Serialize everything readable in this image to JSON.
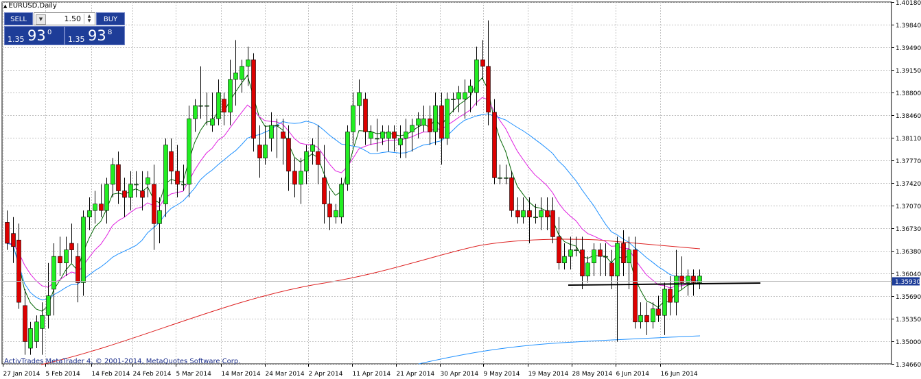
{
  "window": {
    "title": "EURUSD,Daily"
  },
  "trade_panel": {
    "sell_label": "SELL",
    "buy_label": "BUY",
    "lot_value": "1.50",
    "sell_price": {
      "prefix": "1.35",
      "big": "93",
      "sup": "0"
    },
    "buy_price": {
      "prefix": "1.35",
      "big": "93",
      "sup": "8"
    }
  },
  "copyright": "ActivTrades MetaTrader 4, © 2001-2014, MetaQuotes Software Corp.",
  "colors": {
    "bull": "#22ee22",
    "bear": "#dd0000",
    "grid": "#c0c0c0",
    "current_price_bg": "#1e3d98"
  },
  "chart_data": {
    "type": "candlestick",
    "symbol": "EURUSD",
    "timeframe": "Daily",
    "ylim": [
      1.3466,
      1.4018
    ],
    "y_ticks": [
      "1.40180",
      "1.39840",
      "1.39490",
      "1.39150",
      "1.38800",
      "1.38460",
      "1.38110",
      "1.37770",
      "1.37420",
      "1.37070",
      "1.36730",
      "1.36380",
      "1.36040",
      "1.35690",
      "1.35350",
      "1.35000",
      "1.34660"
    ],
    "x_ticks": [
      "27 Jan 2014",
      "5 Feb 2014",
      "14 Feb 2014",
      "24 Feb 2014",
      "5 Mar 2014",
      "14 Mar 2014",
      "24 Mar 2014",
      "2 Apr 2014",
      "11 Apr 2014",
      "21 Apr 2014",
      "30 Apr 2014",
      "9 May 2014",
      "19 May 2014",
      "28 May 2014",
      "6 Jun 2014",
      "16 Jun 2014"
    ],
    "current_price": "1.35930",
    "grid": true,
    "ohlc": [
      [
        1.3682,
        1.37,
        1.364,
        1.365
      ],
      [
        1.3665,
        1.369,
        1.362,
        1.3645
      ],
      [
        1.3655,
        1.368,
        1.355,
        1.356
      ],
      [
        1.3555,
        1.358,
        1.348,
        1.35
      ],
      [
        1.349,
        1.353,
        1.348,
        1.352
      ],
      [
        1.35,
        1.354,
        1.349,
        1.353
      ],
      [
        1.352,
        1.356,
        1.348,
        1.354
      ],
      [
        1.354,
        1.362,
        1.352,
        1.357
      ],
      [
        1.358,
        1.365,
        1.354,
        1.363
      ],
      [
        1.363,
        1.366,
        1.36,
        1.362
      ],
      [
        1.362,
        1.366,
        1.36,
        1.364
      ],
      [
        1.365,
        1.368,
        1.362,
        1.364
      ],
      [
        1.363,
        1.365,
        1.356,
        1.359
      ],
      [
        1.359,
        1.37,
        1.357,
        1.369
      ],
      [
        1.369,
        1.372,
        1.367,
        1.37
      ],
      [
        1.37,
        1.373,
        1.368,
        1.371
      ],
      [
        1.371,
        1.374,
        1.369,
        1.37
      ],
      [
        1.37,
        1.375,
        1.368,
        1.374
      ],
      [
        1.374,
        1.378,
        1.372,
        1.377
      ],
      [
        1.377,
        1.379,
        1.371,
        1.373
      ],
      [
        1.373,
        1.375,
        1.369,
        1.372
      ],
      [
        1.372,
        1.376,
        1.37,
        1.374
      ],
      [
        1.374,
        1.376,
        1.372,
        1.374
      ],
      [
        1.373,
        1.376,
        1.37,
        1.372
      ],
      [
        1.374,
        1.376,
        1.372,
        1.375
      ],
      [
        1.374,
        1.377,
        1.364,
        1.368
      ],
      [
        1.368,
        1.372,
        1.365,
        1.37
      ],
      [
        1.371,
        1.381,
        1.369,
        1.38
      ],
      [
        1.379,
        1.381,
        1.374,
        1.376
      ],
      [
        1.376,
        1.38,
        1.372,
        1.374
      ],
      [
        1.374,
        1.377,
        1.373,
        1.374
      ],
      [
        1.374,
        1.386,
        1.372,
        1.384
      ],
      [
        1.384,
        1.387,
        1.382,
        1.386
      ],
      [
        1.386,
        1.392,
        1.384,
        1.386
      ],
      [
        1.386,
        1.388,
        1.383,
        1.386
      ],
      [
        1.383,
        1.388,
        1.382,
        1.384
      ],
      [
        1.384,
        1.39,
        1.383,
        1.388
      ],
      [
        1.387,
        1.388,
        1.383,
        1.385
      ],
      [
        1.385,
        1.393,
        1.383,
        1.39
      ],
      [
        1.39,
        1.396,
        1.386,
        1.391
      ],
      [
        1.39,
        1.393,
        1.388,
        1.392
      ],
      [
        1.392,
        1.395,
        1.389,
        1.393
      ],
      [
        1.393,
        1.394,
        1.379,
        1.381
      ],
      [
        1.38,
        1.383,
        1.375,
        1.378
      ],
      [
        1.378,
        1.383,
        1.377,
        1.38
      ],
      [
        1.381,
        1.385,
        1.379,
        1.383
      ],
      [
        1.383,
        1.384,
        1.378,
        1.383
      ],
      [
        1.382,
        1.384,
        1.377,
        1.381
      ],
      [
        1.381,
        1.383,
        1.373,
        1.376
      ],
      [
        1.376,
        1.378,
        1.372,
        1.374
      ],
      [
        1.374,
        1.378,
        1.371,
        1.376
      ],
      [
        1.376,
        1.38,
        1.374,
        1.379
      ],
      [
        1.379,
        1.381,
        1.377,
        1.38
      ],
      [
        1.379,
        1.383,
        1.374,
        1.377
      ],
      [
        1.375,
        1.38,
        1.368,
        1.371
      ],
      [
        1.371,
        1.373,
        1.367,
        1.369
      ],
      [
        1.369,
        1.371,
        1.368,
        1.37
      ],
      [
        1.369,
        1.375,
        1.368,
        1.374
      ],
      [
        1.374,
        1.383,
        1.373,
        1.382
      ],
      [
        1.382,
        1.388,
        1.38,
        1.386
      ],
      [
        1.386,
        1.39,
        1.383,
        1.388
      ],
      [
        1.387,
        1.388,
        1.38,
        1.382
      ],
      [
        1.381,
        1.383,
        1.38,
        1.382
      ],
      [
        1.381,
        1.384,
        1.379,
        1.381
      ],
      [
        1.381,
        1.383,
        1.38,
        1.382
      ],
      [
        1.381,
        1.383,
        1.379,
        1.382
      ],
      [
        1.382,
        1.383,
        1.379,
        1.381
      ],
      [
        1.38,
        1.383,
        1.378,
        1.381
      ],
      [
        1.381,
        1.384,
        1.378,
        1.382
      ],
      [
        1.382,
        1.384,
        1.379,
        1.383
      ],
      [
        1.383,
        1.385,
        1.381,
        1.384
      ],
      [
        1.383,
        1.386,
        1.382,
        1.384
      ],
      [
        1.384,
        1.386,
        1.38,
        1.382
      ],
      [
        1.382,
        1.388,
        1.38,
        1.386
      ],
      [
        1.386,
        1.388,
        1.377,
        1.381
      ],
      [
        1.381,
        1.388,
        1.38,
        1.387
      ],
      [
        1.387,
        1.388,
        1.385,
        1.387
      ],
      [
        1.387,
        1.389,
        1.385,
        1.388
      ],
      [
        1.387,
        1.39,
        1.384,
        1.388
      ],
      [
        1.388,
        1.39,
        1.385,
        1.389
      ],
      [
        1.388,
        1.395,
        1.386,
        1.393
      ],
      [
        1.393,
        1.396,
        1.39,
        1.392
      ],
      [
        1.392,
        1.399,
        1.383,
        1.385
      ],
      [
        1.385,
        1.387,
        1.374,
        1.375
      ],
      [
        1.375,
        1.377,
        1.374,
        1.375
      ],
      [
        1.375,
        1.377,
        1.374,
        1.375
      ],
      [
        1.375,
        1.376,
        1.369,
        1.37
      ],
      [
        1.37,
        1.372,
        1.368,
        1.369
      ],
      [
        1.369,
        1.372,
        1.368,
        1.37
      ],
      [
        1.37,
        1.372,
        1.365,
        1.369
      ],
      [
        1.369,
        1.371,
        1.368,
        1.369
      ],
      [
        1.369,
        1.372,
        1.367,
        1.37
      ],
      [
        1.37,
        1.372,
        1.367,
        1.369
      ],
      [
        1.37,
        1.372,
        1.365,
        1.366
      ],
      [
        1.366,
        1.369,
        1.361,
        1.362
      ],
      [
        1.362,
        1.365,
        1.361,
        1.363
      ],
      [
        1.363,
        1.366,
        1.361,
        1.364
      ],
      [
        1.364,
        1.366,
        1.363,
        1.364
      ],
      [
        1.364,
        1.366,
        1.358,
        1.36
      ],
      [
        1.36,
        1.363,
        1.359,
        1.362
      ],
      [
        1.362,
        1.365,
        1.36,
        1.364
      ],
      [
        1.364,
        1.365,
        1.36,
        1.363
      ],
      [
        1.363,
        1.365,
        1.36,
        1.363
      ],
      [
        1.362,
        1.364,
        1.358,
        1.36
      ],
      [
        1.36,
        1.366,
        1.35,
        1.365
      ],
      [
        1.365,
        1.367,
        1.36,
        1.362
      ],
      [
        1.362,
        1.366,
        1.358,
        1.364
      ],
      [
        1.364,
        1.366,
        1.352,
        1.353
      ],
      [
        1.353,
        1.356,
        1.352,
        1.354
      ],
      [
        1.354,
        1.356,
        1.351,
        1.353
      ],
      [
        1.353,
        1.356,
        1.352,
        1.355
      ],
      [
        1.355,
        1.357,
        1.353,
        1.354
      ],
      [
        1.354,
        1.359,
        1.351,
        1.358
      ],
      [
        1.358,
        1.36,
        1.354,
        1.356
      ],
      [
        1.356,
        1.364,
        1.354,
        1.36
      ],
      [
        1.36,
        1.363,
        1.358,
        1.359
      ],
      [
        1.359,
        1.361,
        1.357,
        1.36
      ],
      [
        1.36,
        1.361,
        1.357,
        1.359
      ],
      [
        1.359,
        1.361,
        1.358,
        1.36
      ]
    ]
  }
}
